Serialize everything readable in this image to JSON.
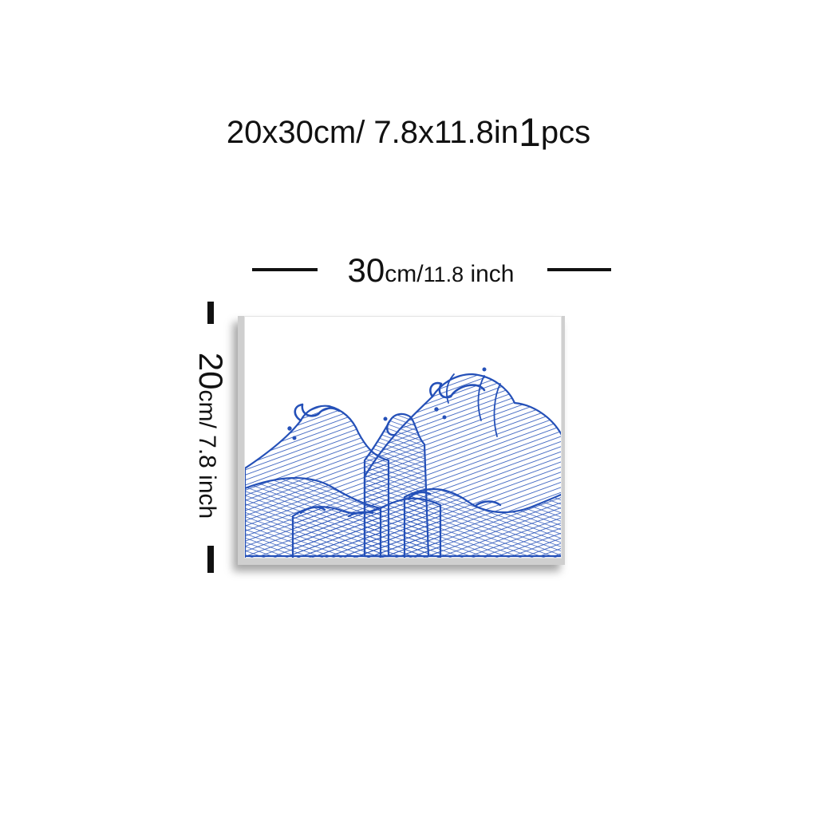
{
  "heading": {
    "size_text": "20x30cm/ 7.8x11.8in",
    "quantity": "1",
    "quantity_unit": "pcs"
  },
  "width_dimension": {
    "value": "30",
    "unit": "cm/",
    "inch_value": "11.8",
    "inch_unit": " inch"
  },
  "height_dimension": {
    "value": "20",
    "unit": "cm/ 7.8 inch"
  },
  "artwork": {
    "subject": "blue ink waves",
    "ink_color": "#2450b8",
    "paper_color": "#ffffff"
  }
}
